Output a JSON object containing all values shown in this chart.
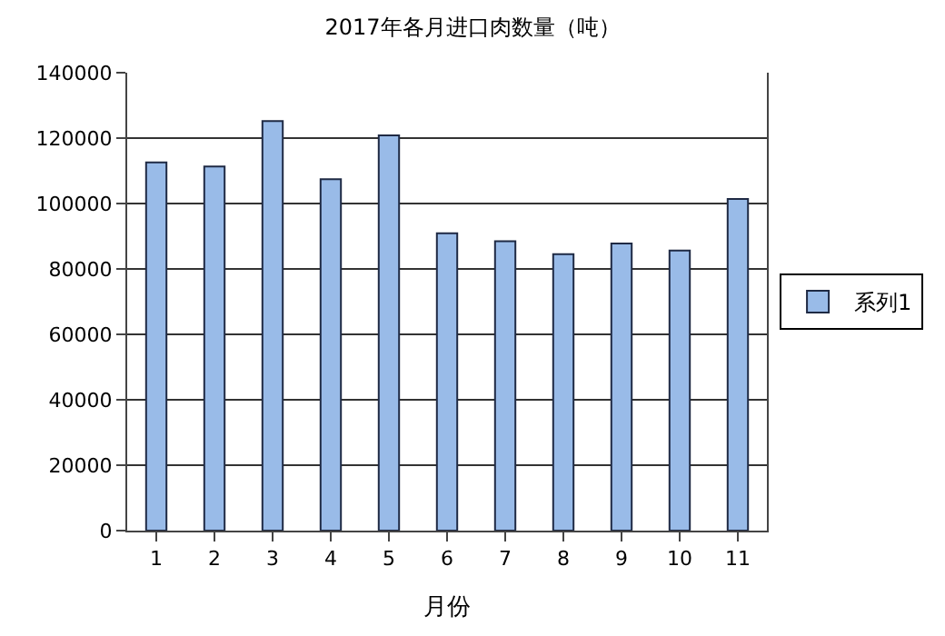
{
  "chart_data": {
    "type": "bar",
    "title": "2017年各月进口肉数量（吨）",
    "xlabel": "月份",
    "categories": [
      "1",
      "2",
      "3",
      "4",
      "5",
      "6",
      "7",
      "8",
      "9",
      "10",
      "11"
    ],
    "series": [
      {
        "name": "系列1",
        "color": "#99bbe8",
        "values": [
          112600,
          111300,
          125200,
          107400,
          120800,
          90900,
          88500,
          84500,
          87800,
          85600,
          101400
        ]
      }
    ],
    "ylim": [
      0,
      140000
    ],
    "yticks": [
      0,
      20000,
      40000,
      60000,
      80000,
      100000,
      120000,
      140000
    ],
    "grid": "y",
    "legend": "right"
  }
}
